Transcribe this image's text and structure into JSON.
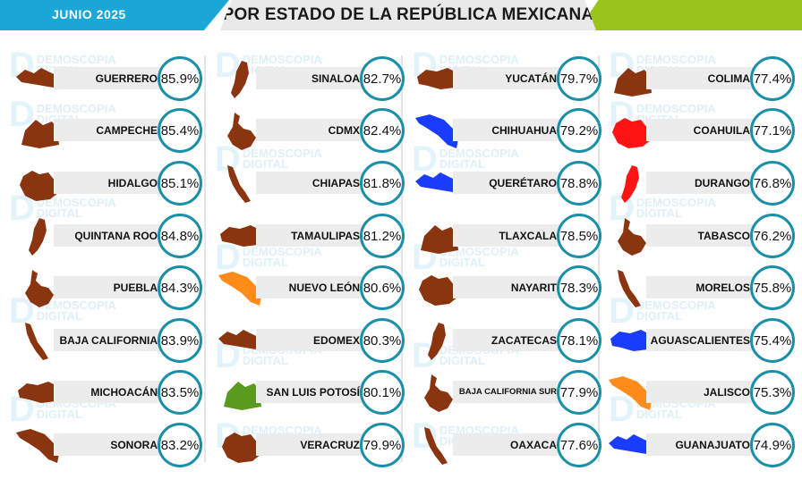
{
  "header": {
    "month": "JUNIO 2025",
    "title": "POR ESTADO DE LA REPÚBLICA MEXICANA"
  },
  "colors": {
    "brown": "#8b3410",
    "red": "#ff1414",
    "blue": "#1a3cff",
    "orange": "#ff8c1a",
    "green": "#5a9a1e",
    "badge_ring": "#1b8fa8",
    "top_left": "#1ba6d8",
    "top_right": "#9ac41c"
  },
  "watermark": {
    "line1": "DEMOSCOPIA",
    "line2": "DIGITAL",
    "letter": "D"
  },
  "chart_data": {
    "type": "table",
    "title": "POR ESTADO DE LA REPÚBLICA MEXICANA",
    "subtitle": "JUNIO 2025",
    "columns": [
      [
        {
          "state": "GUERRERO",
          "value": "85.9%",
          "color": "brown"
        },
        {
          "state": "CAMPECHE",
          "value": "85.4%",
          "color": "brown"
        },
        {
          "state": "HIDALGO",
          "value": "85.1%",
          "color": "brown"
        },
        {
          "state": "QUINTANA ROO",
          "value": "84.8%",
          "color": "brown"
        },
        {
          "state": "PUEBLA",
          "value": "84.3%",
          "color": "brown"
        },
        {
          "state": "BAJA CALIFORNIA",
          "value": "83.9%",
          "color": "brown"
        },
        {
          "state": "MICHOACÁN",
          "value": "83.5%",
          "color": "brown"
        },
        {
          "state": "SONORA",
          "value": "83.2%",
          "color": "brown"
        }
      ],
      [
        {
          "state": "SINALOA",
          "value": "82.7%",
          "color": "brown"
        },
        {
          "state": "CDMX",
          "value": "82.4%",
          "color": "brown"
        },
        {
          "state": "CHIAPAS",
          "value": "81.8%",
          "color": "brown"
        },
        {
          "state": "TAMAULIPAS",
          "value": "81.2%",
          "color": "brown"
        },
        {
          "state": "NUEVO LEÓN",
          "value": "80.6%",
          "color": "orange"
        },
        {
          "state": "EDOMEX",
          "value": "80.3%",
          "color": "brown"
        },
        {
          "state": "SAN LUIS POTOSÍ",
          "value": "80.1%",
          "color": "green"
        },
        {
          "state": "VERACRUZ",
          "value": "79.9%",
          "color": "brown"
        }
      ],
      [
        {
          "state": "YUCATÁN",
          "value": "79.7%",
          "color": "brown"
        },
        {
          "state": "CHIHUAHUA",
          "value": "79.2%",
          "color": "blue"
        },
        {
          "state": "QUERÉTARO",
          "value": "78.8%",
          "color": "blue"
        },
        {
          "state": "TLAXCALA",
          "value": "78.5%",
          "color": "brown"
        },
        {
          "state": "NAYARIT",
          "value": "78.3%",
          "color": "brown"
        },
        {
          "state": "ZACATECAS",
          "value": "78.1%",
          "color": "brown"
        },
        {
          "state": "BAJA CALIFORNIA SUR",
          "value": "77.9%",
          "color": "brown"
        },
        {
          "state": "OAXACA",
          "value": "77.6%",
          "color": "brown"
        }
      ],
      [
        {
          "state": "COLIMA",
          "value": "77.4%",
          "color": "brown"
        },
        {
          "state": "COAHUILA",
          "value": "77.1%",
          "color": "red"
        },
        {
          "state": "DURANGO",
          "value": "76.8%",
          "color": "red"
        },
        {
          "state": "TABASCO",
          "value": "76.2%",
          "color": "brown"
        },
        {
          "state": "MORELOS",
          "value": "75.8%",
          "color": "brown"
        },
        {
          "state": "AGUASCALIENTES",
          "value": "75.4%",
          "color": "blue"
        },
        {
          "state": "JALISCO",
          "value": "75.3%",
          "color": "orange"
        },
        {
          "state": "GUANAJUATO",
          "value": "74.9%",
          "color": "blue"
        }
      ]
    ]
  }
}
